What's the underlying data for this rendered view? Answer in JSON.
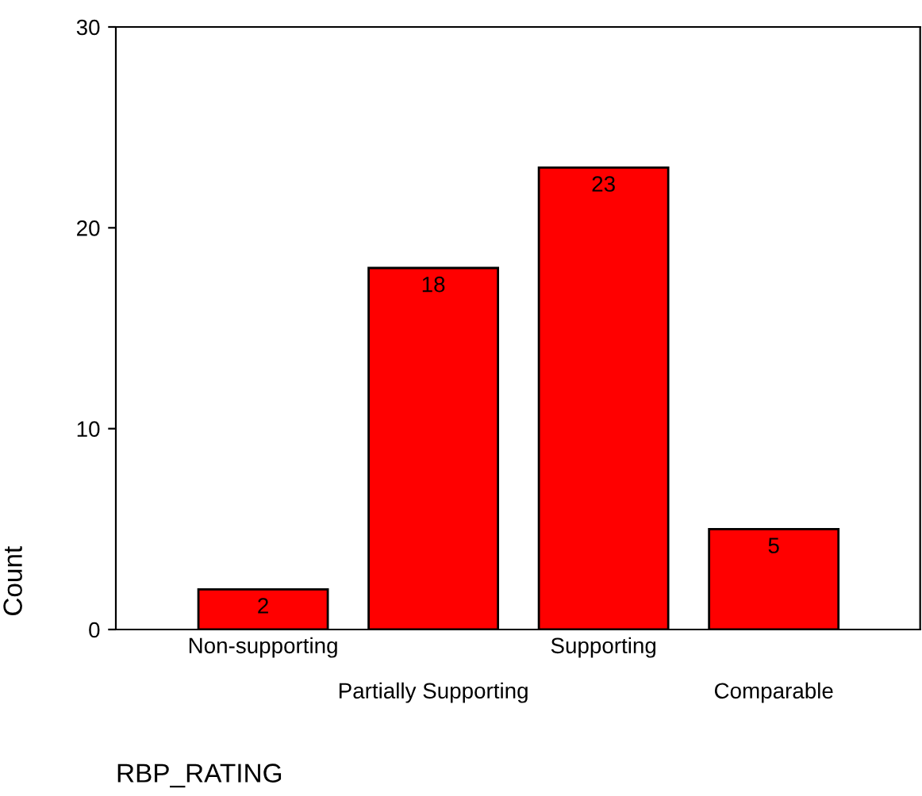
{
  "chart_data": {
    "type": "bar",
    "xlabel": "RBP_RATING",
    "ylabel": "Count",
    "categories": [
      "Non-supporting",
      "Partially Supporting",
      "Supporting",
      "Comparable"
    ],
    "values": [
      2,
      18,
      23,
      5
    ],
    "color": "#ff0000",
    "ylim": [
      0,
      30
    ],
    "yticks": [
      0,
      10,
      20,
      30
    ],
    "data_labels": true
  }
}
